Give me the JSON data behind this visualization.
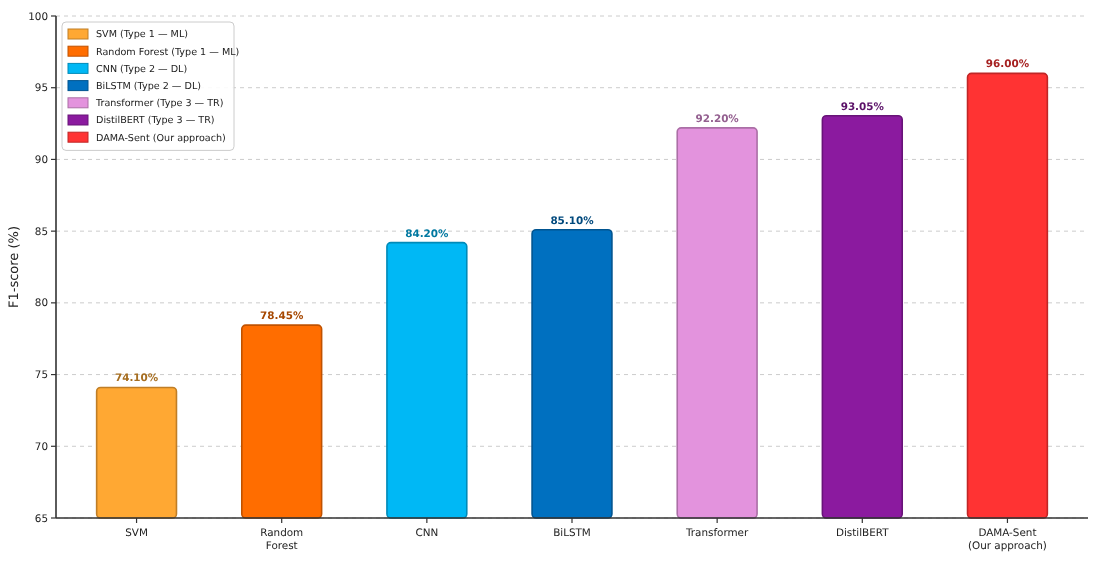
{
  "chart_data": {
    "type": "bar",
    "ylabel": "F1-score (%)",
    "categories": [
      "SVM",
      "Random\nForest",
      "CNN",
      "BiLSTM",
      "Transformer",
      "DistilBERT",
      "DAMA-Sent\n(Our approach)"
    ],
    "stacked": true,
    "ylim": [
      65,
      100
    ],
    "yticks": [
      65,
      70,
      75,
      80,
      85,
      90,
      95,
      100
    ],
    "grid": "y",
    "legend": "top left",
    "series": [
      {
        "name": "SVM (Type 1 — ML)",
        "color": "#ffa833",
        "values": [
          74.1,
          null,
          null,
          null,
          null,
          null,
          null
        ],
        "value_labels": [
          "74.10%",
          null,
          null,
          null,
          null,
          null,
          null
        ]
      },
      {
        "name": "Random Forest (Type 1 — ML)",
        "color": "#ff6d00",
        "values": [
          null,
          78.45,
          null,
          null,
          null,
          null,
          null
        ],
        "value_labels": [
          null,
          "78.45%",
          null,
          null,
          null,
          null,
          null
        ]
      },
      {
        "name": "CNN (Type 2 — DL)",
        "color": "#00b8f5",
        "values": [
          null,
          null,
          84.2,
          null,
          null,
          null,
          null
        ],
        "value_labels": [
          null,
          null,
          "84.20%",
          null,
          null,
          null,
          null
        ]
      },
      {
        "name": "BiLSTM (Type 2 — DL)",
        "color": "#0070c0",
        "values": [
          null,
          null,
          null,
          85.1,
          null,
          null,
          null
        ],
        "value_labels": [
          null,
          null,
          null,
          "85.10%",
          null,
          null,
          null
        ]
      },
      {
        "name": "Transformer (Type 3 — TR)",
        "color": "#e393dd",
        "values": [
          null,
          null,
          null,
          null,
          92.2,
          null,
          null
        ],
        "value_labels": [
          null,
          null,
          null,
          null,
          "92.20%",
          null,
          null
        ]
      },
      {
        "name": "DistilBERT (Type 3 — TR)",
        "color": "#8b1a9f",
        "values": [
          null,
          null,
          null,
          null,
          null,
          93.05,
          null
        ],
        "value_labels": [
          null,
          null,
          null,
          null,
          null,
          "93.05%",
          null
        ]
      },
      {
        "name": "DAMA-Sent (Our approach)",
        "color": "#ff3333",
        "values": [
          null,
          null,
          null,
          null,
          null,
          null,
          96.0
        ],
        "value_labels": [
          null,
          null,
          null,
          null,
          null,
          null,
          "96.00%"
        ]
      }
    ]
  }
}
